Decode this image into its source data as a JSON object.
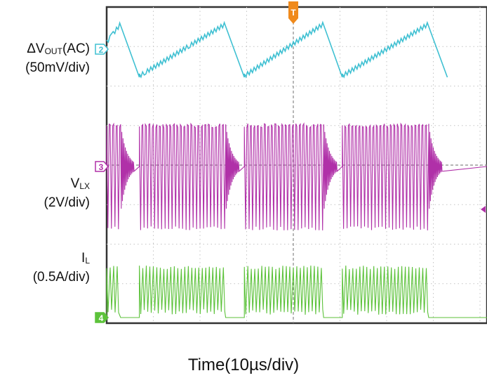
{
  "chart_data": {
    "type": "line",
    "title": "",
    "xlabel": "Time(10µs/div)",
    "time_per_div_us": 10,
    "grid": true,
    "trigger_marker": "T",
    "channels": [
      {
        "id": "2",
        "name_main": "ΔV",
        "name_sub": "OUT",
        "name_suffix": "(AC)",
        "scale": "(50mV/div)",
        "color": "#3fc0d2",
        "waveform": "sawtooth ripple",
        "ramp_periods_us": [
          {
            "rise_start": 0,
            "rise_end": 3,
            "fall_end": 7
          },
          {
            "rise_start": 7,
            "rise_end": 25.5,
            "fall_end": 29.5
          },
          {
            "rise_start": 29.5,
            "rise_end": 46.5,
            "fall_end": 50.5
          },
          {
            "rise_start": 50.5,
            "rise_end": 69,
            "fall_end": 73
          }
        ]
      },
      {
        "id": "3",
        "name_main": "V",
        "name_sub": "LX",
        "name_suffix": "",
        "scale": "(2V/div)",
        "color": "#b030a8",
        "waveform": "switching bursts",
        "bursts_us": [
          [
            0,
            3
          ],
          [
            7,
            25.5
          ],
          [
            29.5,
            46.5
          ],
          [
            50.5,
            69
          ]
        ]
      },
      {
        "id": "4",
        "name_main": "I",
        "name_sub": "L",
        "name_suffix": "",
        "scale": "(0.5A/div)",
        "color": "#5cc23a",
        "waveform": "inductor current bursts",
        "bursts_us": [
          [
            0,
            3
          ],
          [
            7,
            25.5
          ],
          [
            29.5,
            46.5
          ],
          [
            50.5,
            69
          ]
        ]
      }
    ]
  }
}
